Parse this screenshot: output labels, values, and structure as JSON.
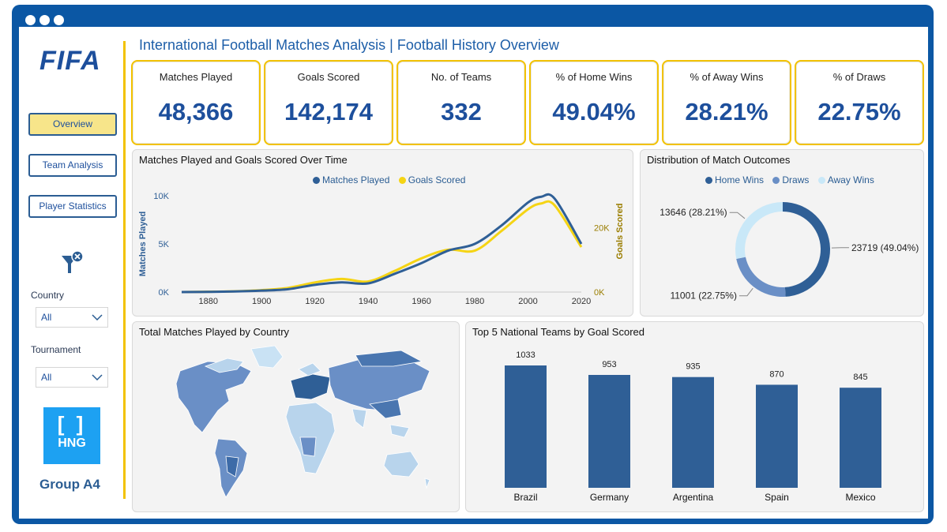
{
  "brand": {
    "logo_text": "FIFA",
    "group_label": "Group A4",
    "hng_mark": "[ ]",
    "hng_text": "HNG"
  },
  "nav": {
    "items": [
      {
        "label": "Overview",
        "active": true
      },
      {
        "label": "Team Analysis",
        "active": false
      },
      {
        "label": "Player Statistics",
        "active": false
      }
    ]
  },
  "filters": {
    "icon": "filter-clear-icon",
    "country": {
      "label": "Country",
      "value": "All"
    },
    "tournament": {
      "label": "Tournament",
      "value": "All"
    }
  },
  "page_title": "International Football Matches Analysis | Football History Overview",
  "kpis": [
    {
      "label": "Matches Played",
      "value": "48,366"
    },
    {
      "label": "Goals Scored",
      "value": "142,174"
    },
    {
      "label": "No. of Teams",
      "value": "332"
    },
    {
      "label": "% of Home Wins",
      "value": "49.04%"
    },
    {
      "label": "% of Away Wins",
      "value": "28.21%"
    },
    {
      "label": "% of Draws",
      "value": "22.75%"
    }
  ],
  "colors": {
    "primary": "#2f5f96",
    "accent": "#f5d414",
    "light_blue": "#c9e8f8",
    "mid_blue": "#6a8fc6",
    "frame": "#0b57a4"
  },
  "chart_data": [
    {
      "type": "line",
      "title": "Matches Played and Goals Scored Over Time",
      "xlabel": "",
      "x_ticks": [
        "1880",
        "1900",
        "1920",
        "1940",
        "1960",
        "1980",
        "2000",
        "2020"
      ],
      "y_left": {
        "label": "Matches Played",
        "ticks": [
          "0K",
          "5K",
          "10K"
        ],
        "range": [
          0,
          10000
        ]
      },
      "y_right": {
        "label": "Goals Scored",
        "ticks": [
          "0K",
          "20K"
        ],
        "range": [
          0,
          30000
        ]
      },
      "series": [
        {
          "name": "Matches Played",
          "axis": "left",
          "color": "#2f5f96",
          "x": [
            1870,
            1880,
            1890,
            1900,
            1910,
            1920,
            1930,
            1940,
            1950,
            1960,
            1970,
            1980,
            1990,
            2000,
            2005,
            2010,
            2020
          ],
          "y": [
            0,
            20,
            60,
            150,
            300,
            750,
            1000,
            900,
            1900,
            3000,
            4300,
            5000,
            6900,
            9300,
            9900,
            9700,
            5000
          ]
        },
        {
          "name": "Goals Scored",
          "axis": "right",
          "color": "#f5d414",
          "x": [
            1870,
            1880,
            1890,
            1900,
            1910,
            1920,
            1930,
            1940,
            1950,
            1960,
            1970,
            1980,
            1990,
            2000,
            2005,
            2010,
            2020
          ],
          "y": [
            0,
            100,
            250,
            600,
            1300,
            3000,
            4100,
            3300,
            6600,
            10500,
            13200,
            12900,
            19000,
            25800,
            27600,
            27000,
            14000
          ]
        }
      ]
    },
    {
      "type": "pie",
      "title": "Distribution of Match Outcomes",
      "labels": [
        "Home Wins",
        "Draws",
        "Away Wins"
      ],
      "values": [
        23719,
        11001,
        13646
      ],
      "data_labels": [
        "23719 (49.04%)",
        "11001 (22.75%)",
        "13646 (28.21%)"
      ],
      "colors": [
        "#2f5f96",
        "#6a8fc6",
        "#c9e8f8"
      ]
    },
    {
      "type": "bar",
      "title": "Top 5 National Teams by Goal Scored",
      "categories": [
        "Brazil",
        "Germany",
        "Argentina",
        "Spain",
        "Mexico"
      ],
      "values": [
        1033,
        953,
        935,
        870,
        845
      ],
      "color": "#2f5f96"
    }
  ],
  "map": {
    "title": "Total Matches Played by Country"
  }
}
